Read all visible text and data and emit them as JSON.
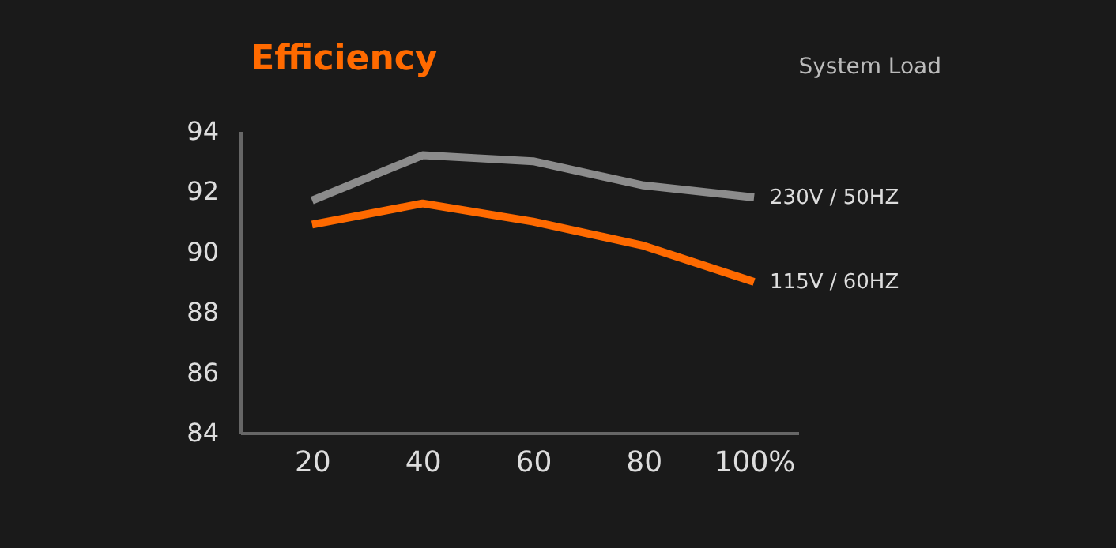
{
  "chart_data": {
    "type": "line",
    "title": "Efficiency",
    "xlabel": "System Load",
    "xlim": [
      7,
      108
    ],
    "xticks": [
      20,
      40,
      60,
      80,
      {
        "value": 100,
        "label": "100%"
      }
    ],
    "ylim": [
      84,
      94
    ],
    "yticks": [
      84,
      86,
      88,
      90,
      92,
      94
    ],
    "grid": false,
    "legend": false,
    "marker": "none",
    "line_style": "solid",
    "series": [
      {
        "name": "230V / 50HZ",
        "color": "#8c8c8c",
        "x": [
          20,
          40,
          50,
          60,
          80,
          100
        ],
        "values": [
          91.7,
          93.2,
          93.1,
          93.0,
          92.2,
          91.8
        ]
      },
      {
        "name": "115V / 60HZ",
        "color": "#ff6a00",
        "x": [
          20,
          40,
          60,
          80,
          100
        ],
        "values": [
          90.9,
          91.6,
          91.0,
          90.2,
          89.0
        ]
      }
    ]
  }
}
